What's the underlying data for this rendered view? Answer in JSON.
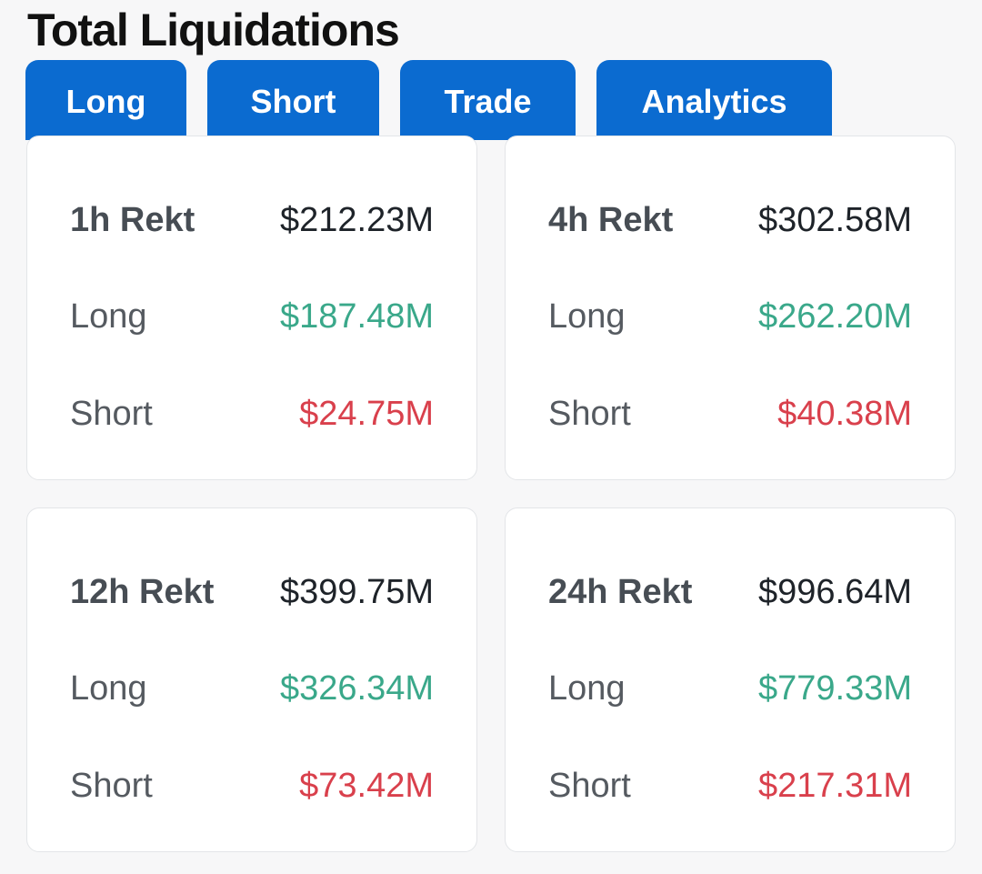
{
  "header": {
    "title": "Total Liquidations"
  },
  "tabs": [
    {
      "label": "Long"
    },
    {
      "label": "Short"
    },
    {
      "label": "Trade"
    },
    {
      "label": "Analytics"
    }
  ],
  "cards": [
    {
      "period_label": "1h Rekt",
      "total": "$212.23M",
      "long_label": "Long",
      "long": "$187.48M",
      "short_label": "Short",
      "short": "$24.75M"
    },
    {
      "period_label": "4h Rekt",
      "total": "$302.58M",
      "long_label": "Long",
      "long": "$262.20M",
      "short_label": "Short",
      "short": "$40.38M"
    },
    {
      "period_label": "12h Rekt",
      "total": "$399.75M",
      "long_label": "Long",
      "long": "$326.34M",
      "short_label": "Short",
      "short": "$73.42M"
    },
    {
      "period_label": "24h Rekt",
      "total": "$996.64M",
      "long_label": "Long",
      "long": "$779.33M",
      "short_label": "Short",
      "short": "$217.31M"
    }
  ],
  "colors": {
    "tab_background": "#0b6bd0",
    "long_value": "#3aa88a",
    "short_value": "#d9404c",
    "page_background": "#f7f7f8"
  }
}
